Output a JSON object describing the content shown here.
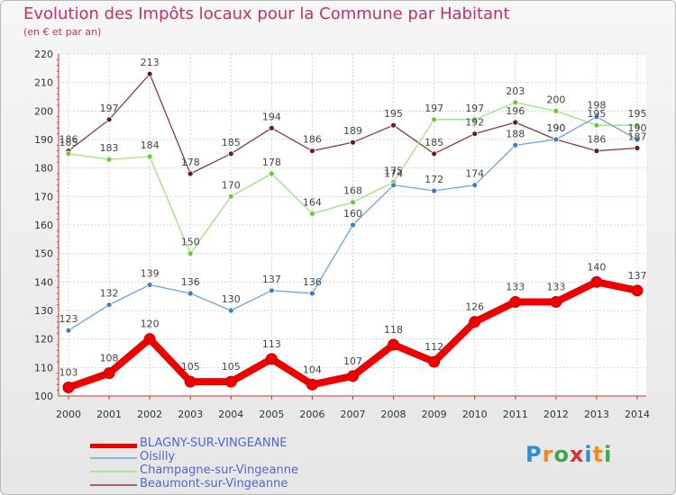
{
  "header": {
    "title": "Evolution des Impôts locaux pour la Commune par Habitant",
    "subtitle": "(en € et par an)"
  },
  "logo": {
    "text": "Proxiti",
    "colors": [
      "#2a8fd6",
      "#f08a1c",
      "#3aa84a",
      "#d8303a"
    ]
  },
  "chart_data": {
    "type": "line",
    "title": "Evolution des Impôts locaux pour la Commune par Habitant",
    "subtitle": "(en € et par an)",
    "xlabel": "",
    "ylabel": "",
    "categories": [
      "2000",
      "2001",
      "2002",
      "2003",
      "2004",
      "2005",
      "2006",
      "2007",
      "2008",
      "2009",
      "2010",
      "2011",
      "2012",
      "2013",
      "2014"
    ],
    "ylim": [
      100,
      220
    ],
    "yticks": [
      100,
      110,
      120,
      130,
      140,
      150,
      160,
      170,
      180,
      190,
      200,
      210,
      220
    ],
    "grid": true,
    "legend_position": "bottom-left",
    "series": [
      {
        "name": "BLAGNY-SUR-VINGEANNE",
        "color": "#ee0000",
        "point_color": "#ee0000",
        "emphasis": true,
        "values": [
          103,
          108,
          120,
          105,
          105,
          113,
          104,
          107,
          118,
          112,
          126,
          133,
          133,
          140,
          137
        ]
      },
      {
        "name": "Oisilly",
        "color": "#6fa3d6",
        "point_color": "#3c7fc4",
        "emphasis": false,
        "values": [
          123,
          132,
          139,
          136,
          130,
          137,
          136,
          160,
          174,
          172,
          174,
          188,
          190,
          198,
          190
        ]
      },
      {
        "name": "Champagne-sur-Vingeanne",
        "color": "#9fe07a",
        "point_color": "#66cc33",
        "emphasis": false,
        "values": [
          185,
          183,
          184,
          150,
          170,
          178,
          164,
          168,
          175,
          197,
          197,
          203,
          200,
          195,
          195
        ]
      },
      {
        "name": "Beaumont-sur-Vingeanne",
        "color": "#8a3a3a",
        "point_color": "#6a1a1a",
        "emphasis": false,
        "values": [
          186,
          197,
          213,
          178,
          185,
          194,
          186,
          189,
          195,
          185,
          192,
          196,
          190,
          186,
          187
        ]
      }
    ]
  }
}
